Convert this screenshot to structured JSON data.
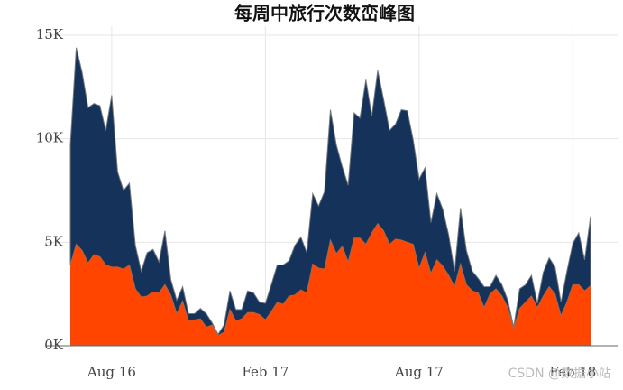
{
  "chart_data": {
    "type": "stacked-area",
    "title": "每周中旅行次数峦峰图",
    "categories": [
      null,
      null,
      null,
      null,
      null,
      null,
      null,
      "Aug 16",
      null,
      null,
      null,
      null,
      null,
      null,
      null,
      null,
      null,
      null,
      null,
      null,
      null,
      null,
      null,
      null,
      null,
      null,
      null,
      null,
      null,
      null,
      null,
      null,
      null,
      "Feb 17",
      null,
      null,
      null,
      null,
      null,
      null,
      null,
      null,
      null,
      null,
      null,
      null,
      null,
      null,
      null,
      null,
      null,
      null,
      null,
      null,
      null,
      null,
      null,
      null,
      null,
      "Aug 17",
      null,
      null,
      null,
      null,
      null,
      null,
      null,
      null,
      null,
      null,
      null,
      null,
      null,
      null,
      null,
      null,
      null,
      null,
      null,
      null,
      null,
      null,
      null,
      null,
      null,
      "Feb 18",
      null,
      null,
      null
    ],
    "series": [
      {
        "color": "#ff4500",
        "values": [
          3900,
          4900,
          4600,
          4000,
          4400,
          4300,
          3900,
          3800,
          3800,
          3700,
          3900,
          2750,
          2350,
          2400,
          2600,
          2550,
          2950,
          2450,
          1550,
          2150,
          1200,
          1250,
          1300,
          900,
          1000,
          500,
          650,
          1750,
          1200,
          1300,
          1600,
          1600,
          1500,
          1250,
          1650,
          2100,
          2000,
          2400,
          2450,
          2700,
          2550,
          3950,
          3750,
          3700,
          5100,
          4450,
          4800,
          4050,
          5200,
          5200,
          4900,
          5450,
          5900,
          5550,
          4900,
          5150,
          5100,
          5000,
          4900,
          3750,
          4500,
          3500,
          4150,
          3850,
          3400,
          2850,
          3950,
          2950,
          2650,
          2550,
          1850,
          2500,
          2750,
          2400,
          1850,
          850,
          1800,
          2100,
          2400,
          1850,
          2400,
          2850,
          2500,
          1450,
          2100,
          2950,
          2950,
          2650,
          2900
        ]
      },
      {
        "color": "#14325a",
        "values": [
          5800,
          9500,
          8600,
          7500,
          7300,
          7300,
          6500,
          8300,
          4600,
          3800,
          3950,
          2100,
          1250,
          2100,
          2050,
          1500,
          2600,
          750,
          650,
          700,
          350,
          300,
          500,
          650,
          100,
          50,
          350,
          900,
          550,
          450,
          1050,
          950,
          600,
          800,
          1300,
          1800,
          1900,
          1700,
          2400,
          2550,
          1950,
          3400,
          3000,
          3750,
          6300,
          5250,
          3850,
          3700,
          6050,
          5800,
          7950,
          5650,
          7400,
          6350,
          5500,
          5550,
          6300,
          6350,
          5050,
          4300,
          4100,
          2450,
          3200,
          2750,
          1950,
          750,
          2700,
          1650,
          950,
          700,
          1000,
          350,
          650,
          550,
          350,
          50,
          950,
          850,
          1000,
          200,
          1150,
          1400,
          1300,
          650,
          1500,
          2000,
          2500,
          1500,
          3350
        ]
      }
    ],
    "ylim": [
      0,
      15000
    ],
    "yticks": [
      {
        "value": 0,
        "label": "0K"
      },
      {
        "value": 5000,
        "label": "5K"
      },
      {
        "value": 10000,
        "label": "10K"
      },
      {
        "value": 15000,
        "label": "15K"
      }
    ],
    "grid": true
  },
  "watermark": "CSDN @数据小站"
}
